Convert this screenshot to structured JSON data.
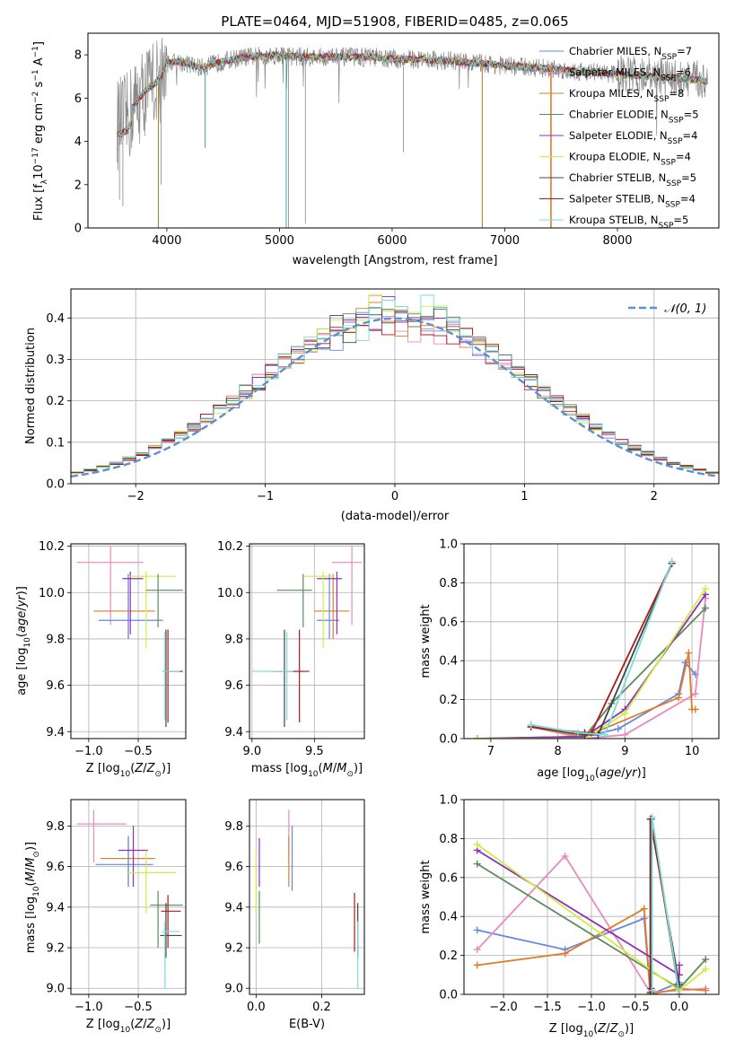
{
  "figure": {
    "title": "PLATE=0464, MJD=51908, FIBERID=0485, z=0.065"
  },
  "colors": {
    "chabrier_miles": "#6688dd",
    "salpeter_miles": "#e88ac0",
    "kroupa_miles": "#e07b28",
    "chabrier_elodie": "#5e8a5e",
    "salpeter_elodie": "#8e2fb8",
    "kroupa_elodie": "#ccee44",
    "chabrier_stelib": "#444444",
    "salpeter_stelib": "#b01818",
    "kroupa_stelib": "#77dddd",
    "data": "#888888",
    "normal": "#5b8fd6"
  },
  "chart_data": [
    {
      "id": "spectrum",
      "type": "line",
      "title": "PLATE=0464, MJD=51908, FIBERID=0485, z=0.065",
      "xlabel": "wavelength [Angstrom, rest frame]",
      "ylabel_main": "Flux [f",
      "ylabel_units": "10 erg cm s A",
      "xlim": [
        3300,
        8900
      ],
      "ylim": [
        0,
        9
      ],
      "xticks": [
        "4000",
        "5000",
        "6000",
        "7000",
        "8000"
      ],
      "yticks": [
        "0",
        "2",
        "4",
        "6",
        "8"
      ],
      "legend": [
        {
          "label": "Chabrier MILES, N",
          "n": "=7"
        },
        {
          "label": "Salpeter MILES, N",
          "n": "=6"
        },
        {
          "label": "Kroupa MILES, N",
          "n": "=8"
        },
        {
          "label": "Chabrier ELODIE, N",
          "n": "=5"
        },
        {
          "label": "Salpeter ELODIE, N",
          "n": "=4"
        },
        {
          "label": "Kroupa ELODIE, N",
          "n": "=4"
        },
        {
          "label": "Chabrier STELIB, N",
          "n": "=5"
        },
        {
          "label": "Salpeter STELIB, N",
          "n": "=4"
        },
        {
          "label": "Kroupa STELIB, N",
          "n": "=5"
        }
      ],
      "continuum": [
        [
          3560,
          4.8
        ],
        [
          3650,
          5.0
        ],
        [
          3700,
          5.6
        ],
        [
          3800,
          6.3
        ],
        [
          3900,
          6.7
        ],
        [
          3950,
          7.0
        ],
        [
          4000,
          7.6
        ],
        [
          4100,
          7.7
        ],
        [
          4300,
          7.4
        ],
        [
          4500,
          7.7
        ],
        [
          4700,
          7.9
        ],
        [
          5000,
          8.0
        ],
        [
          5200,
          7.9
        ],
        [
          5500,
          7.9
        ],
        [
          5800,
          7.9
        ],
        [
          6000,
          7.8
        ],
        [
          6300,
          7.8
        ],
        [
          6560,
          7.7
        ],
        [
          6800,
          7.6
        ],
        [
          7000,
          7.5
        ],
        [
          7300,
          7.4
        ],
        [
          7500,
          7.3
        ],
        [
          7800,
          7.2
        ],
        [
          8000,
          7.1
        ],
        [
          8300,
          7.0
        ],
        [
          8600,
          6.9
        ],
        [
          8800,
          6.8
        ]
      ]
    },
    {
      "id": "residuals",
      "type": "histogram",
      "xlabel": "(data-model)/error",
      "ylabel": "Normed distribution",
      "xlim": [
        -2.5,
        2.5
      ],
      "ylim": [
        0,
        0.47
      ],
      "xticks": [
        "−2",
        "−1",
        "0",
        "1",
        "2"
      ],
      "yticks": [
        "0.0",
        "0.1",
        "0.2",
        "0.3",
        "0.4"
      ],
      "legend": "𝒩(0, 1)",
      "bin_width": 0.1
    },
    {
      "id": "age_vs_z",
      "type": "errorbar",
      "xlabel": "Z [log",
      "ylabel": "age  [log",
      "xlim": [
        -1.18,
        -0.02
      ],
      "ylim": [
        9.37,
        10.21
      ],
      "xticks": [
        "−1.0",
        "−0.5"
      ],
      "yticks": [
        "9.4",
        "9.6",
        "9.8",
        "10.0",
        "10.2"
      ],
      "points": [
        {
          "model": "salpeter_miles",
          "x": -0.78,
          "y": 10.13,
          "xlo": -1.12,
          "xhi": -0.45,
          "ylo": 9.86,
          "yhi": 10.2
        },
        {
          "model": "kroupa_miles",
          "x": -0.6,
          "y": 9.92,
          "xlo": -0.95,
          "xhi": -0.33,
          "ylo": 9.8,
          "yhi": 10.08
        },
        {
          "model": "chabrier_miles",
          "x": -0.6,
          "y": 9.88,
          "xlo": -0.9,
          "xhi": -0.25,
          "ylo": 9.8,
          "yhi": 10.08
        },
        {
          "model": "salpeter_elodie",
          "x": -0.58,
          "y": 10.06,
          "xlo": -0.66,
          "xhi": -0.45,
          "ylo": 9.82,
          "yhi": 10.09
        },
        {
          "model": "kroupa_elodie",
          "x": -0.42,
          "y": 10.07,
          "xlo": -0.6,
          "xhi": -0.12,
          "ylo": 9.76,
          "yhi": 10.09
        },
        {
          "model": "chabrier_elodie",
          "x": -0.3,
          "y": 10.01,
          "xlo": -0.42,
          "xhi": -0.05,
          "ylo": 9.85,
          "yhi": 10.08
        },
        {
          "model": "chabrier_stelib",
          "x": -0.22,
          "y": 9.66,
          "xlo": -0.25,
          "xhi": -0.06,
          "ylo": 9.42,
          "yhi": 9.84
        },
        {
          "model": "salpeter_stelib",
          "x": -0.2,
          "y": 9.66,
          "xlo": -0.23,
          "xhi": -0.05,
          "ylo": 9.44,
          "yhi": 9.84
        },
        {
          "model": "kroupa_stelib",
          "x": -0.23,
          "y": 9.66,
          "xlo": -0.26,
          "xhi": -0.08,
          "ylo": 9.45,
          "yhi": 9.83
        }
      ]
    },
    {
      "id": "age_vs_mass",
      "type": "errorbar",
      "xlabel": "mass [log",
      "xlim": [
        8.98,
        9.9
      ],
      "ylim": [
        9.37,
        10.21
      ],
      "xticks": [
        "9.0",
        "9.5"
      ],
      "yticks": [
        "9.4",
        "9.6",
        "9.8",
        "10.0",
        "10.2"
      ],
      "points": [
        {
          "model": "salpeter_miles",
          "x": 9.8,
          "y": 10.13,
          "xlo": 9.64,
          "xhi": 9.88,
          "ylo": 9.86,
          "yhi": 10.2
        },
        {
          "model": "kroupa_miles",
          "x": 9.65,
          "y": 9.92,
          "xlo": 9.5,
          "xhi": 9.78,
          "ylo": 9.8,
          "yhi": 10.08
        },
        {
          "model": "chabrier_miles",
          "x": 9.62,
          "y": 9.88,
          "xlo": 9.52,
          "xhi": 9.7,
          "ylo": 9.8,
          "yhi": 10.08
        },
        {
          "model": "salpeter_elodie",
          "x": 9.68,
          "y": 10.06,
          "xlo": 9.52,
          "xhi": 9.72,
          "ylo": 9.82,
          "yhi": 10.09
        },
        {
          "model": "kroupa_elodie",
          "x": 9.57,
          "y": 10.07,
          "xlo": 9.42,
          "xhi": 9.66,
          "ylo": 9.76,
          "yhi": 10.09
        },
        {
          "model": "chabrier_elodie",
          "x": 9.41,
          "y": 10.01,
          "xlo": 9.2,
          "xhi": 9.48,
          "ylo": 9.85,
          "yhi": 10.08
        },
        {
          "model": "chabrier_stelib",
          "x": 9.26,
          "y": 9.66,
          "xlo": 9.15,
          "xhi": 9.42,
          "ylo": 9.42,
          "yhi": 9.84
        },
        {
          "model": "salpeter_stelib",
          "x": 9.38,
          "y": 9.66,
          "xlo": 9.2,
          "xhi": 9.46,
          "ylo": 9.44,
          "yhi": 9.84
        },
        {
          "model": "kroupa_stelib",
          "x": 9.28,
          "y": 9.66,
          "xlo": 9.0,
          "xhi": 9.33,
          "ylo": 9.45,
          "yhi": 9.83
        }
      ]
    },
    {
      "id": "weight_vs_age",
      "type": "line",
      "xlabel": "age  [log",
      "ylabel": "mass weight",
      "xlim": [
        6.6,
        10.4
      ],
      "ylim": [
        0,
        1
      ],
      "xticks": [
        "7",
        "8",
        "9",
        "10"
      ],
      "yticks": [
        "0.0",
        "0.2",
        "0.4",
        "0.6",
        "0.8",
        "1.0"
      ],
      "series": [
        {
          "model": "chabrier_miles",
          "x": [
            7.6,
            8.4,
            8.9,
            9.8,
            9.9,
            10.05
          ],
          "y": [
            0.07,
            0.01,
            0.05,
            0.23,
            0.39,
            0.33
          ]
        },
        {
          "model": "salpeter_miles",
          "x": [
            7.6,
            8.4,
            9.0,
            10.05,
            10.2
          ],
          "y": [
            0.06,
            0.0,
            0.02,
            0.23,
            0.72
          ]
        },
        {
          "model": "kroupa_miles",
          "x": [
            7.6,
            8.4,
            9.8,
            9.95,
            10.0,
            10.05
          ],
          "y": [
            0.06,
            0.01,
            0.21,
            0.44,
            0.15,
            0.15
          ]
        },
        {
          "model": "chabrier_elodie",
          "x": [
            6.8,
            8.4,
            8.8,
            10.2
          ],
          "y": [
            0.0,
            0.01,
            0.18,
            0.67
          ]
        },
        {
          "model": "salpeter_elodie",
          "x": [
            6.8,
            8.4,
            9.0,
            10.2
          ],
          "y": [
            0.0,
            0.01,
            0.15,
            0.74
          ]
        },
        {
          "model": "kroupa_elodie",
          "x": [
            6.8,
            8.4,
            9.0,
            10.2
          ],
          "y": [
            0.0,
            0.0,
            0.13,
            0.77
          ]
        },
        {
          "model": "chabrier_stelib",
          "x": [
            7.6,
            8.4,
            8.6,
            9.7
          ],
          "y": [
            0.06,
            0.02,
            0.02,
            0.9
          ]
        },
        {
          "model": "salpeter_stelib",
          "x": [
            7.6,
            8.4,
            8.5,
            9.7
          ],
          "y": [
            0.06,
            0.03,
            0.03,
            0.9
          ]
        },
        {
          "model": "kroupa_stelib",
          "x": [
            7.6,
            8.3,
            8.7,
            9.7
          ],
          "y": [
            0.07,
            0.03,
            0.02,
            0.91
          ]
        }
      ]
    },
    {
      "id": "mass_vs_z",
      "type": "errorbar",
      "xlabel": "Z [log",
      "ylabel": "mass [log",
      "xlim": [
        -1.18,
        -0.02
      ],
      "ylim": [
        8.97,
        9.93
      ],
      "xticks": [
        "−1.0",
        "−0.5"
      ],
      "yticks": [
        "9.0",
        "9.2",
        "9.4",
        "9.6",
        "9.8"
      ],
      "points": [
        {
          "model": "salpeter_miles",
          "x": -0.95,
          "y": 9.81,
          "xlo": -1.12,
          "xhi": -0.62,
          "ylo": 9.62,
          "yhi": 9.88
        },
        {
          "model": "kroupa_miles",
          "x": -0.6,
          "y": 9.64,
          "xlo": -0.88,
          "xhi": -0.33,
          "ylo": 9.5,
          "yhi": 9.75
        },
        {
          "model": "chabrier_miles",
          "x": -0.6,
          "y": 9.61,
          "xlo": -0.93,
          "xhi": -0.35,
          "ylo": 9.5,
          "yhi": 9.75
        },
        {
          "model": "salpeter_elodie",
          "x": -0.55,
          "y": 9.68,
          "xlo": -0.7,
          "xhi": -0.4,
          "ylo": 9.5,
          "yhi": 9.8
        },
        {
          "model": "kroupa_elodie",
          "x": -0.42,
          "y": 9.57,
          "xlo": -0.6,
          "xhi": -0.12,
          "ylo": 9.37,
          "yhi": 9.68
        },
        {
          "model": "chabrier_elodie",
          "x": -0.3,
          "y": 9.41,
          "xlo": -0.38,
          "xhi": -0.05,
          "ylo": 9.2,
          "yhi": 9.48
        },
        {
          "model": "chabrier_stelib",
          "x": -0.22,
          "y": 9.26,
          "xlo": -0.28,
          "xhi": -0.06,
          "ylo": 9.15,
          "yhi": 9.42
        },
        {
          "model": "salpeter_stelib",
          "x": -0.2,
          "y": 9.38,
          "xlo": -0.27,
          "xhi": -0.07,
          "ylo": 9.2,
          "yhi": 9.46
        },
        {
          "model": "kroupa_stelib",
          "x": -0.23,
          "y": 9.28,
          "xlo": -0.26,
          "xhi": -0.08,
          "ylo": 9.0,
          "yhi": 9.33
        }
      ]
    },
    {
      "id": "mass_vs_ebv",
      "type": "errorbar",
      "xlabel": "E(B-V)",
      "xlim": [
        -0.02,
        0.33
      ],
      "ylim": [
        8.97,
        9.93
      ],
      "xticks": [
        "0.0",
        "0.2"
      ],
      "yticks": [
        "9.0",
        "9.2",
        "9.4",
        "9.6",
        "9.8"
      ],
      "points": [
        {
          "model": "salpeter_miles",
          "x": 0.1,
          "y": 9.81,
          "ylo": 9.62,
          "yhi": 9.88
        },
        {
          "model": "kroupa_miles",
          "x": 0.1,
          "y": 9.64,
          "ylo": 9.5,
          "yhi": 9.75
        },
        {
          "model": "chabrier_miles",
          "x": 0.11,
          "y": 9.61,
          "ylo": 9.48,
          "yhi": 9.8
        },
        {
          "model": "salpeter_elodie",
          "x": 0.01,
          "y": 9.68,
          "ylo": 9.5,
          "yhi": 9.74
        },
        {
          "model": "kroupa_elodie",
          "x": 0.0,
          "y": 9.57,
          "ylo": 9.37,
          "yhi": 9.68
        },
        {
          "model": "chabrier_elodie",
          "x": 0.01,
          "y": 9.41,
          "ylo": 9.22,
          "yhi": 9.48
        },
        {
          "model": "chabrier_stelib",
          "x": 0.31,
          "y": 9.26,
          "ylo": 9.15,
          "yhi": 9.42
        },
        {
          "model": "salpeter_stelib",
          "x": 0.3,
          "y": 9.38,
          "ylo": 9.18,
          "yhi": 9.47
        },
        {
          "model": "kroupa_stelib",
          "x": 0.31,
          "y": 9.28,
          "ylo": 9.0,
          "yhi": 9.33
        }
      ]
    },
    {
      "id": "weight_vs_z",
      "type": "line",
      "xlabel": "Z [log",
      "ylabel": "mass weight",
      "xlim": [
        -2.45,
        0.45
      ],
      "ylim": [
        0,
        1
      ],
      "xticks": [
        "−2.0",
        "−1.5",
        "−1.0",
        "−0.5",
        "0.0"
      ],
      "yticks": [
        "0.0",
        "0.2",
        "0.4",
        "0.6",
        "0.8",
        "1.0"
      ],
      "series": [
        {
          "model": "chabrier_miles",
          "x": [
            -2.3,
            -1.3,
            -0.4,
            -0.33,
            0.0
          ],
          "y": [
            0.33,
            0.23,
            0.39,
            0.0,
            0.06
          ]
        },
        {
          "model": "salpeter_miles",
          "x": [
            -2.3,
            -1.3,
            -0.33,
            0.0,
            0.3
          ],
          "y": [
            0.23,
            0.71,
            0.01,
            0.02,
            0.03
          ]
        },
        {
          "model": "kroupa_miles",
          "x": [
            -2.3,
            -1.3,
            -0.4,
            -0.33,
            0.0,
            0.3
          ],
          "y": [
            0.15,
            0.21,
            0.44,
            0.0,
            0.03,
            0.02
          ]
        },
        {
          "model": "chabrier_elodie",
          "x": [
            -2.3,
            0.0,
            0.3
          ],
          "y": [
            0.67,
            0.03,
            0.18
          ]
        },
        {
          "model": "salpeter_elodie",
          "x": [
            -2.3,
            0.0,
            0.0
          ],
          "y": [
            0.74,
            0.1,
            0.15
          ]
        },
        {
          "model": "kroupa_elodie",
          "x": [
            -2.3,
            0.0,
            0.3
          ],
          "y": [
            0.77,
            0.02,
            0.13
          ]
        },
        {
          "model": "chabrier_stelib",
          "x": [
            -0.33,
            -0.33,
            0.0
          ],
          "y": [
            0.01,
            0.9,
            0.05
          ]
        },
        {
          "model": "salpeter_stelib",
          "x": [
            -0.32,
            -0.32,
            0.0
          ],
          "y": [
            0.03,
            0.9,
            0.0
          ]
        },
        {
          "model": "kroupa_stelib",
          "x": [
            -0.31,
            -0.31,
            0.0
          ],
          "y": [
            0.02,
            0.91,
            0.0
          ]
        }
      ]
    }
  ]
}
